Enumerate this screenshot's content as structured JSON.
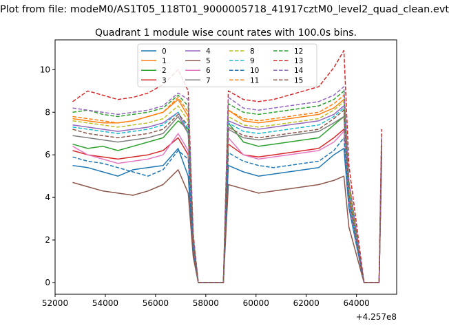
{
  "chart_data": {
    "type": "line",
    "suptitle": "Plot from file: modeM0/AS1T05_118T01_9000005718_41917cztM0_level2_quad_clean.evt",
    "title": "Quadrant 1 module wise count rates with 100.0s bins.",
    "xlabel": "",
    "ylabel": "",
    "x_offset_label": "+4.257e8",
    "xlim": [
      52000,
      65600
    ],
    "ylim": [
      -0.55,
      11.4
    ],
    "xticks": [
      52000,
      54000,
      56000,
      58000,
      60000,
      62000,
      64000
    ],
    "yticks": [
      0,
      2,
      4,
      6,
      8,
      10
    ],
    "x": [
      52700,
      53300,
      53900,
      54500,
      55100,
      55700,
      56300,
      56900,
      57300,
      57500,
      57700,
      58300,
      58700,
      58900,
      59500,
      60100,
      60700,
      61300,
      61900,
      62500,
      63100,
      63500,
      63700,
      64300,
      64900,
      65000
    ],
    "legend": {
      "location": "upper-center",
      "columns": 4
    },
    "series": [
      {
        "name": "0",
        "color": "#1f77b4",
        "dash": "solid",
        "values": [
          5.5,
          5.4,
          5.2,
          5.0,
          5.3,
          5.4,
          5.5,
          6.3,
          5.0,
          1.5,
          0,
          0,
          0,
          5.5,
          5.2,
          5.0,
          5.1,
          5.2,
          5.3,
          5.4,
          6.0,
          6.3,
          3.5,
          0,
          0,
          6.0
        ]
      },
      {
        "name": "1",
        "color": "#ff7f0e",
        "dash": "solid",
        "values": [
          7.7,
          7.6,
          7.5,
          7.5,
          7.6,
          7.8,
          8.0,
          8.6,
          7.8,
          2.0,
          0,
          0,
          0,
          8.1,
          7.6,
          7.5,
          7.6,
          7.7,
          7.8,
          7.9,
          8.2,
          8.6,
          4.5,
          0,
          0,
          6.5
        ]
      },
      {
        "name": "2",
        "color": "#2ca02c",
        "dash": "solid",
        "values": [
          6.5,
          6.3,
          6.4,
          6.2,
          6.4,
          6.6,
          6.8,
          7.6,
          7.2,
          1.8,
          0,
          0,
          0,
          7.5,
          6.6,
          6.4,
          6.5,
          6.6,
          6.7,
          6.8,
          7.4,
          7.8,
          4.0,
          0,
          0,
          6.2
        ]
      },
      {
        "name": "3",
        "color": "#d62728",
        "dash": "solid",
        "values": [
          6.2,
          6.0,
          5.9,
          5.8,
          5.9,
          6.0,
          6.2,
          6.8,
          6.0,
          1.6,
          0,
          0,
          0,
          6.5,
          6.0,
          5.9,
          6.0,
          6.1,
          6.2,
          6.3,
          6.8,
          7.2,
          3.8,
          0,
          0,
          6.0
        ]
      },
      {
        "name": "4",
        "color": "#9467bd",
        "dash": "solid",
        "values": [
          7.4,
          7.3,
          7.2,
          7.1,
          7.2,
          7.3,
          7.5,
          8.0,
          7.0,
          1.9,
          0,
          0,
          0,
          7.6,
          7.3,
          7.2,
          7.3,
          7.4,
          7.5,
          7.6,
          7.9,
          8.3,
          4.2,
          0,
          0,
          6.3
        ]
      },
      {
        "name": "5",
        "color": "#8c564b",
        "dash": "solid",
        "values": [
          4.7,
          4.5,
          4.3,
          4.2,
          4.1,
          4.3,
          4.6,
          5.3,
          4.2,
          1.2,
          0,
          0,
          0,
          4.6,
          4.4,
          4.2,
          4.3,
          4.4,
          4.5,
          4.6,
          4.8,
          5.0,
          2.6,
          0,
          0,
          5.5
        ]
      },
      {
        "name": "6",
        "color": "#e377c2",
        "dash": "solid",
        "values": [
          6.4,
          6.0,
          5.8,
          5.6,
          5.7,
          5.8,
          6.0,
          7.0,
          6.2,
          1.7,
          0,
          0,
          0,
          6.8,
          6.0,
          5.8,
          5.9,
          6.0,
          6.1,
          6.2,
          6.6,
          7.1,
          3.7,
          0,
          0,
          6.1
        ]
      },
      {
        "name": "7",
        "color": "#7f7f7f",
        "dash": "solid",
        "values": [
          6.9,
          6.8,
          6.7,
          6.6,
          6.7,
          6.8,
          7.0,
          7.8,
          7.0,
          1.8,
          0,
          0,
          0,
          7.2,
          6.8,
          6.7,
          6.8,
          6.9,
          7.0,
          7.1,
          7.5,
          7.8,
          4.0,
          0,
          0,
          6.2
        ]
      },
      {
        "name": "8",
        "color": "#bcbd22",
        "dash": "dashed",
        "values": [
          7.6,
          7.5,
          7.4,
          7.3,
          7.4,
          7.5,
          7.7,
          8.3,
          7.6,
          2.0,
          0,
          0,
          0,
          7.8,
          7.4,
          7.3,
          7.4,
          7.5,
          7.6,
          7.7,
          8.1,
          8.5,
          4.4,
          0,
          0,
          6.5
        ]
      },
      {
        "name": "9",
        "color": "#17becf",
        "dash": "dashed",
        "values": [
          7.3,
          7.2,
          7.1,
          7.0,
          7.1,
          7.2,
          7.4,
          8.0,
          7.2,
          1.9,
          0,
          0,
          0,
          7.5,
          7.1,
          7.0,
          7.1,
          7.2,
          7.3,
          7.4,
          7.8,
          8.2,
          4.2,
          0,
          0,
          6.4
        ]
      },
      {
        "name": "10",
        "color": "#1f77b4",
        "dash": "dashed",
        "values": [
          5.9,
          5.7,
          5.6,
          5.4,
          5.2,
          5.0,
          5.3,
          6.2,
          5.8,
          1.6,
          0,
          0,
          0,
          6.1,
          5.7,
          5.5,
          5.4,
          5.5,
          5.6,
          5.7,
          6.2,
          6.8,
          3.6,
          0,
          0,
          6.0
        ]
      },
      {
        "name": "11",
        "color": "#ff7f0e",
        "dash": "dashed",
        "values": [
          7.8,
          7.7,
          7.6,
          7.5,
          7.6,
          7.8,
          8.0,
          8.7,
          8.0,
          2.1,
          0,
          0,
          0,
          8.1,
          7.7,
          7.6,
          7.7,
          7.8,
          7.9,
          8.0,
          8.4,
          8.8,
          4.6,
          0,
          0,
          6.6
        ]
      },
      {
        "name": "12",
        "color": "#2ca02c",
        "dash": "dashed",
        "values": [
          8.0,
          8.1,
          7.9,
          7.8,
          7.9,
          8.0,
          8.2,
          8.8,
          8.3,
          2.1,
          0,
          0,
          0,
          8.4,
          8.0,
          7.9,
          8.0,
          8.1,
          8.2,
          8.3,
          8.6,
          9.0,
          4.7,
          0,
          0,
          6.7
        ]
      },
      {
        "name": "13",
        "color": "#d62728",
        "dash": "dashed",
        "values": [
          8.5,
          9.0,
          8.8,
          8.6,
          8.7,
          8.9,
          9.3,
          10.0,
          9.0,
          2.3,
          0,
          0,
          0,
          9.0,
          8.6,
          8.5,
          8.6,
          8.8,
          9.0,
          9.2,
          10.1,
          10.9,
          5.5,
          0,
          0,
          7.2
        ]
      },
      {
        "name": "14",
        "color": "#9467bd",
        "dash": "dashed",
        "values": [
          8.2,
          8.1,
          8.0,
          7.9,
          8.0,
          8.1,
          8.3,
          8.9,
          8.6,
          2.2,
          0,
          0,
          0,
          8.7,
          8.2,
          8.1,
          8.2,
          8.3,
          8.4,
          8.5,
          8.8,
          9.2,
          4.8,
          0,
          0,
          6.8
        ]
      },
      {
        "name": "15",
        "color": "#8c564b",
        "dash": "dashed",
        "values": [
          7.2,
          7.0,
          6.9,
          6.8,
          6.9,
          7.0,
          7.2,
          7.9,
          7.4,
          1.9,
          0,
          0,
          0,
          7.3,
          6.9,
          6.8,
          6.9,
          7.0,
          7.1,
          7.2,
          7.7,
          8.1,
          4.1,
          0,
          0,
          6.3
        ]
      }
    ]
  }
}
